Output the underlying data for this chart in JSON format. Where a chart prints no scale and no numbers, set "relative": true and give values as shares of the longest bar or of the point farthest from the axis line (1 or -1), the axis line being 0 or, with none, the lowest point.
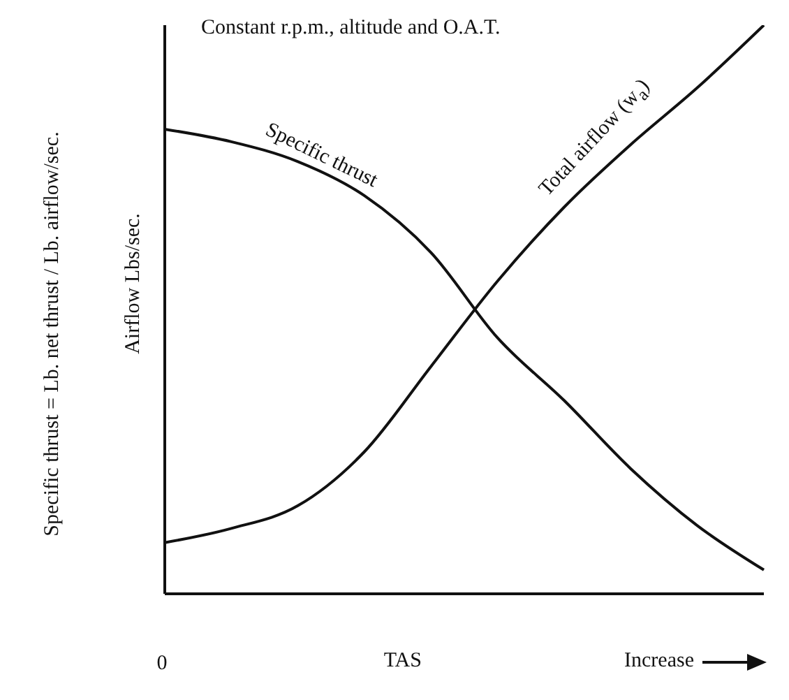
{
  "chart_data": {
    "type": "line",
    "title": "Constant r.p.m., altitude and O.A.T.",
    "xlabel": "TAS",
    "ylabel": "Specific thrust = Lb. net thrust / Lb. airflow/sec.",
    "y2label": "Airflow Lbs/sec.",
    "annotations": [
      "0",
      "Increase"
    ],
    "relative": true,
    "grid": false,
    "legend": false,
    "marker": "none",
    "line_style": "solid",
    "categories": [
      null,
      null,
      null,
      null,
      null,
      null,
      null,
      null,
      null,
      null
    ],
    "series": [
      {
        "name": "Specific thrust",
        "color": "#111111",
        "values": [
          0.817,
          0.795,
          0.76,
          0.7,
          0.6,
          0.45,
          0.34,
          0.22,
          0.12,
          0.042
        ]
      },
      {
        "name": "Total airflow (w$_{a}$)",
        "color": "#111111",
        "values": [
          0.09,
          0.115,
          0.155,
          0.25,
          0.4,
          0.55,
          0.68,
          0.79,
          0.89,
          1.0
        ]
      }
    ]
  }
}
